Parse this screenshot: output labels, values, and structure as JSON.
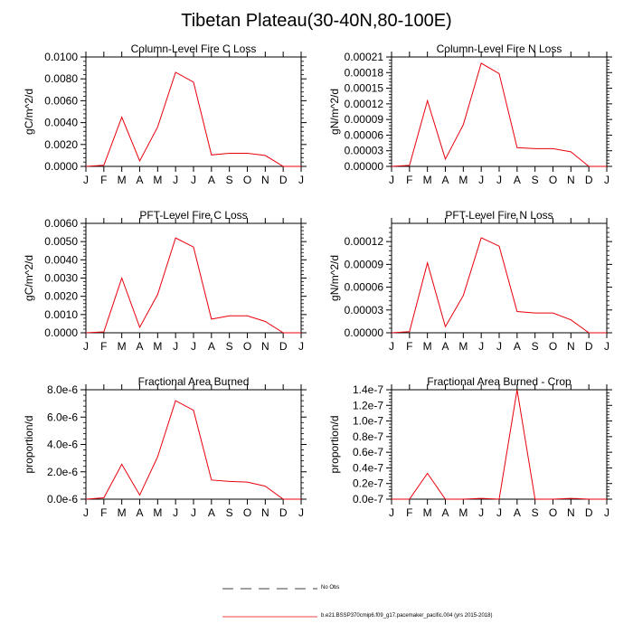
{
  "figure": {
    "title": "Tibetan Plateau(30-40N,80-100E)",
    "legend": [
      {
        "label": "No Obs",
        "style": "dashed",
        "color": "#000000"
      },
      {
        "label": "b.e21.BSSP370cmip6.f09_g17.pacemaker_pacific.004 (yrs 2015-2018)",
        "style": "solid",
        "color": "#e8000b"
      }
    ]
  },
  "chart_data": [
    {
      "type": "line",
      "title": "Column-Level Fire C Loss",
      "ylabel": "gC/m^2/d",
      "categories": [
        "J",
        "F",
        "M",
        "A",
        "M",
        "J",
        "J",
        "A",
        "S",
        "O",
        "N",
        "D",
        "J"
      ],
      "ylim": [
        0,
        0.01
      ],
      "yticks": [
        0,
        0.002,
        0.004,
        0.006,
        0.008,
        0.01
      ],
      "ytick_labels": [
        "0.0000",
        "0.0020",
        "0.0040",
        "0.0060",
        "0.0080",
        "0.0100"
      ],
      "series": [
        {
          "color": "#e8000b",
          "values": [
            0.0,
            0.0001,
            0.0045,
            0.0005,
            0.0036,
            0.0086,
            0.0077,
            0.00105,
            0.0012,
            0.0012,
            0.001,
            0.0,
            0.0
          ]
        }
      ]
    },
    {
      "type": "line",
      "title": "Column-Level Fire N Loss",
      "ylabel": "gN/m^2/d",
      "categories": [
        "J",
        "F",
        "M",
        "A",
        "M",
        "J",
        "J",
        "A",
        "S",
        "O",
        "N",
        "D",
        "J"
      ],
      "ylim": [
        0,
        0.00021
      ],
      "yticks": [
        0,
        3e-05,
        6e-05,
        9e-05,
        0.00012,
        0.00015,
        0.00018,
        0.00021
      ],
      "ytick_labels": [
        "0.00000",
        "0.00003",
        "0.00006",
        "0.00009",
        "0.00012",
        "0.00015",
        "0.00018",
        "0.00021"
      ],
      "series": [
        {
          "color": "#e8000b",
          "values": [
            0.0,
            2e-06,
            0.000126,
            1.4e-05,
            8e-05,
            0.000198,
            0.000178,
            3.6e-05,
            3.4e-05,
            3.4e-05,
            2.8e-05,
            0.0,
            0.0
          ]
        }
      ]
    },
    {
      "type": "line",
      "title": "PFT-Level Fire C Loss",
      "ylabel": "gC/m^2/d",
      "categories": [
        "J",
        "F",
        "M",
        "A",
        "M",
        "J",
        "J",
        "A",
        "S",
        "O",
        "N",
        "D",
        "J"
      ],
      "ylim": [
        0,
        0.006
      ],
      "yticks": [
        0,
        0.001,
        0.002,
        0.003,
        0.004,
        0.005,
        0.006
      ],
      "ytick_labels": [
        "0.0000",
        "0.0010",
        "0.0020",
        "0.0030",
        "0.0040",
        "0.0050",
        "0.0060"
      ],
      "series": [
        {
          "color": "#e8000b",
          "values": [
            0.0,
            5e-05,
            0.003,
            0.0003,
            0.0021,
            0.0052,
            0.0047,
            0.00075,
            0.00093,
            0.00093,
            0.00062,
            0.0,
            0.0
          ]
        }
      ]
    },
    {
      "type": "line",
      "title": "PFT-Level Fire N Loss",
      "ylabel": "gN/m^2/d",
      "categories": [
        "J",
        "F",
        "M",
        "A",
        "M",
        "J",
        "J",
        "A",
        "S",
        "O",
        "N",
        "D",
        "J"
      ],
      "ylim": [
        0,
        0.000144
      ],
      "yticks": [
        0,
        3e-05,
        6e-05,
        9e-05,
        0.00012
      ],
      "ytick_labels": [
        "0.00000",
        "0.00003",
        "0.00006",
        "0.00009",
        "0.00012"
      ],
      "series": [
        {
          "color": "#e8000b",
          "values": [
            0.0,
            1.5e-06,
            9.2e-05,
            8e-06,
            4.9e-05,
            0.000125,
            0.000114,
            2.8e-05,
            2.6e-05,
            2.6e-05,
            1.7e-05,
            0.0,
            0.0
          ]
        }
      ]
    },
    {
      "type": "line",
      "title": "Fractional Area Burned",
      "ylabel": "proportion/d",
      "categories": [
        "J",
        "F",
        "M",
        "A",
        "M",
        "J",
        "J",
        "A",
        "S",
        "O",
        "N",
        "D",
        "J"
      ],
      "ylim": [
        0,
        8e-06
      ],
      "yticks": [
        0,
        2e-06,
        4e-06,
        6e-06,
        8e-06
      ],
      "ytick_labels": [
        "0.0e-6",
        "2.0e-6",
        "4.0e-6",
        "6.0e-6",
        "8.0e-6"
      ],
      "series": [
        {
          "color": "#e8000b",
          "values": [
            0.0,
            1e-07,
            2.55e-06,
            3e-07,
            3.1e-06,
            7.2e-06,
            6.5e-06,
            1.4e-06,
            1.3e-06,
            1.25e-06,
            9.5e-07,
            0.0,
            0.0
          ]
        }
      ]
    },
    {
      "type": "line",
      "title": "Fractional Area Burned - Crop",
      "ylabel": "proportion/d",
      "categories": [
        "J",
        "F",
        "M",
        "A",
        "M",
        "J",
        "J",
        "A",
        "S",
        "O",
        "N",
        "D",
        "J"
      ],
      "ylim": [
        0,
        1.4e-07
      ],
      "yticks": [
        0,
        2e-08,
        4e-08,
        6e-08,
        8e-08,
        1e-07,
        1.2e-07,
        1.4e-07
      ],
      "ytick_labels": [
        "0.0e-7",
        "0.2e-7",
        "0.4e-7",
        "0.6e-7",
        "0.8e-7",
        "1.0e-7",
        "1.2e-7",
        "1.4e-7"
      ],
      "series": [
        {
          "color": "#e8000b",
          "values": [
            0.0,
            0.0,
            3.3e-08,
            0.0,
            0.0,
            1e-09,
            0.0,
            1.4e-07,
            0.0,
            0.0,
            1e-09,
            0.0,
            0.0
          ]
        }
      ]
    }
  ]
}
